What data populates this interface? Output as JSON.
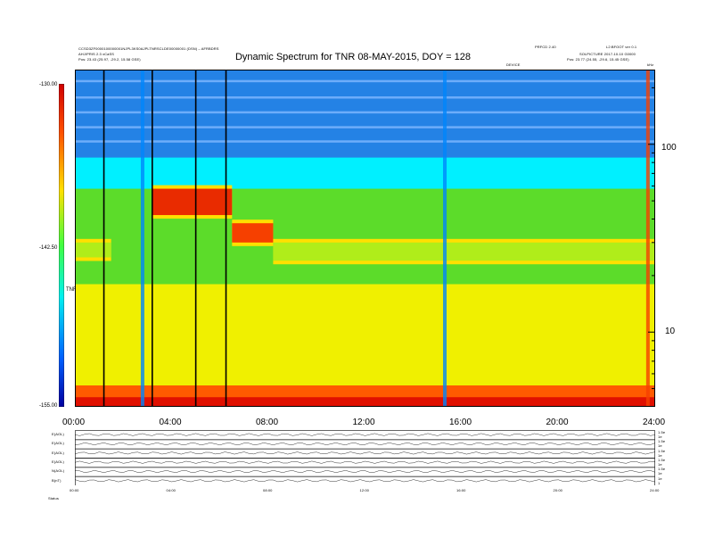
{
  "header": {
    "left_line1": "CCSD3ZF0000100000001NJPL3KS0AJPLTNRSCLDE00000001 (DSN) – AFRBDRS",
    "left_line2": "AHJ/PRIS 2.3 xCaSS",
    "left_line3": "Pos: 23.43 (25.97, -29.2, 15.58 GSE)",
    "right_line1_a": "PRFCD 2.40",
    "right_line1_b": "L2:BFOOT ver 0.1",
    "right_line2": "SOLPICTURE 2017-10-10 G0000",
    "right_line3": "Pos: 23.77 (24.55, -29.6, 15.45 GSE)",
    "mid_label": "DEVICE",
    "corner": "kHz"
  },
  "chart_data": {
    "type": "heatmap",
    "title": "Dynamic Spectrum for TNR 08-MAY-2015, DOY = 128",
    "x_tick_labels": [
      "00:00",
      "04:00",
      "08:00",
      "12:00",
      "16:00",
      "20:00",
      "24:00"
    ],
    "x_range_hours": [
      0,
      24
    ],
    "y_axis": {
      "scale": "log",
      "unit": "kHz",
      "range": [
        4,
        250
      ],
      "tick_labels": [
        "100",
        "10"
      ]
    },
    "colorbar": {
      "label": "TNR",
      "range": [
        -155.0,
        -130.0
      ],
      "tick_labels": [
        "-130.00",
        "-142.50",
        "-155.00"
      ]
    },
    "data_gaps_hours": [
      1.2,
      3.2,
      5.0,
      6.25
    ],
    "features": [
      {
        "kind": "plasma_line_band",
        "time_hours": [
          0,
          1.5
        ],
        "freq_khz": [
          25,
          30
        ],
        "level_db": -140
      },
      {
        "kind": "plasma_line_band",
        "time_hours": [
          3.2,
          6.5
        ],
        "freq_khz": [
          42,
          58
        ],
        "level_db": -132
      },
      {
        "kind": "plasma_line_band",
        "time_hours": [
          6.5,
          8.2
        ],
        "freq_khz": [
          30,
          38
        ],
        "level_db": -133
      },
      {
        "kind": "plasma_line_band",
        "time_hours": [
          8.2,
          24
        ],
        "freq_khz": [
          24,
          30
        ],
        "level_db": -140
      },
      {
        "kind": "type_iii_burst",
        "time_hours": 2.8,
        "level_db": -150
      },
      {
        "kind": "type_iii_burst",
        "time_hours": 15.3,
        "level_db": -150
      },
      {
        "kind": "type_iii_burst",
        "time_hours": 23.7,
        "level_db": -133
      }
    ],
    "line_panels": [
      {
        "label": "E(AOL)",
        "right_ticks": [
          "1.5e",
          "1e"
        ]
      },
      {
        "label": "E(AOL)",
        "right_ticks": [
          "1.5e",
          "1e"
        ]
      },
      {
        "label": "E(AOL)",
        "right_ticks": [
          "1.5e",
          "1e"
        ]
      },
      {
        "label": "E(AOL)",
        "right_ticks": [
          "1.5e",
          "1e"
        ]
      },
      {
        "label": "N(AOL)",
        "right_ticks": [
          "1.5e",
          "1e"
        ]
      },
      {
        "label": "B(nT)",
        "right_ticks": [
          "1e",
          "1"
        ]
      }
    ],
    "bottom_axis_labels": [
      "00:00",
      "04:00",
      "08:00",
      "12:00",
      "16:00",
      "20:00",
      "24:00"
    ],
    "bottom_row_label": "Status"
  },
  "colors": {
    "background": "#00f0ff",
    "high_freq_band": "#2a6fe0",
    "mid_green": "#5cdc2a",
    "low_yellow": "#f0f000",
    "burst_red": "#e01000"
  }
}
